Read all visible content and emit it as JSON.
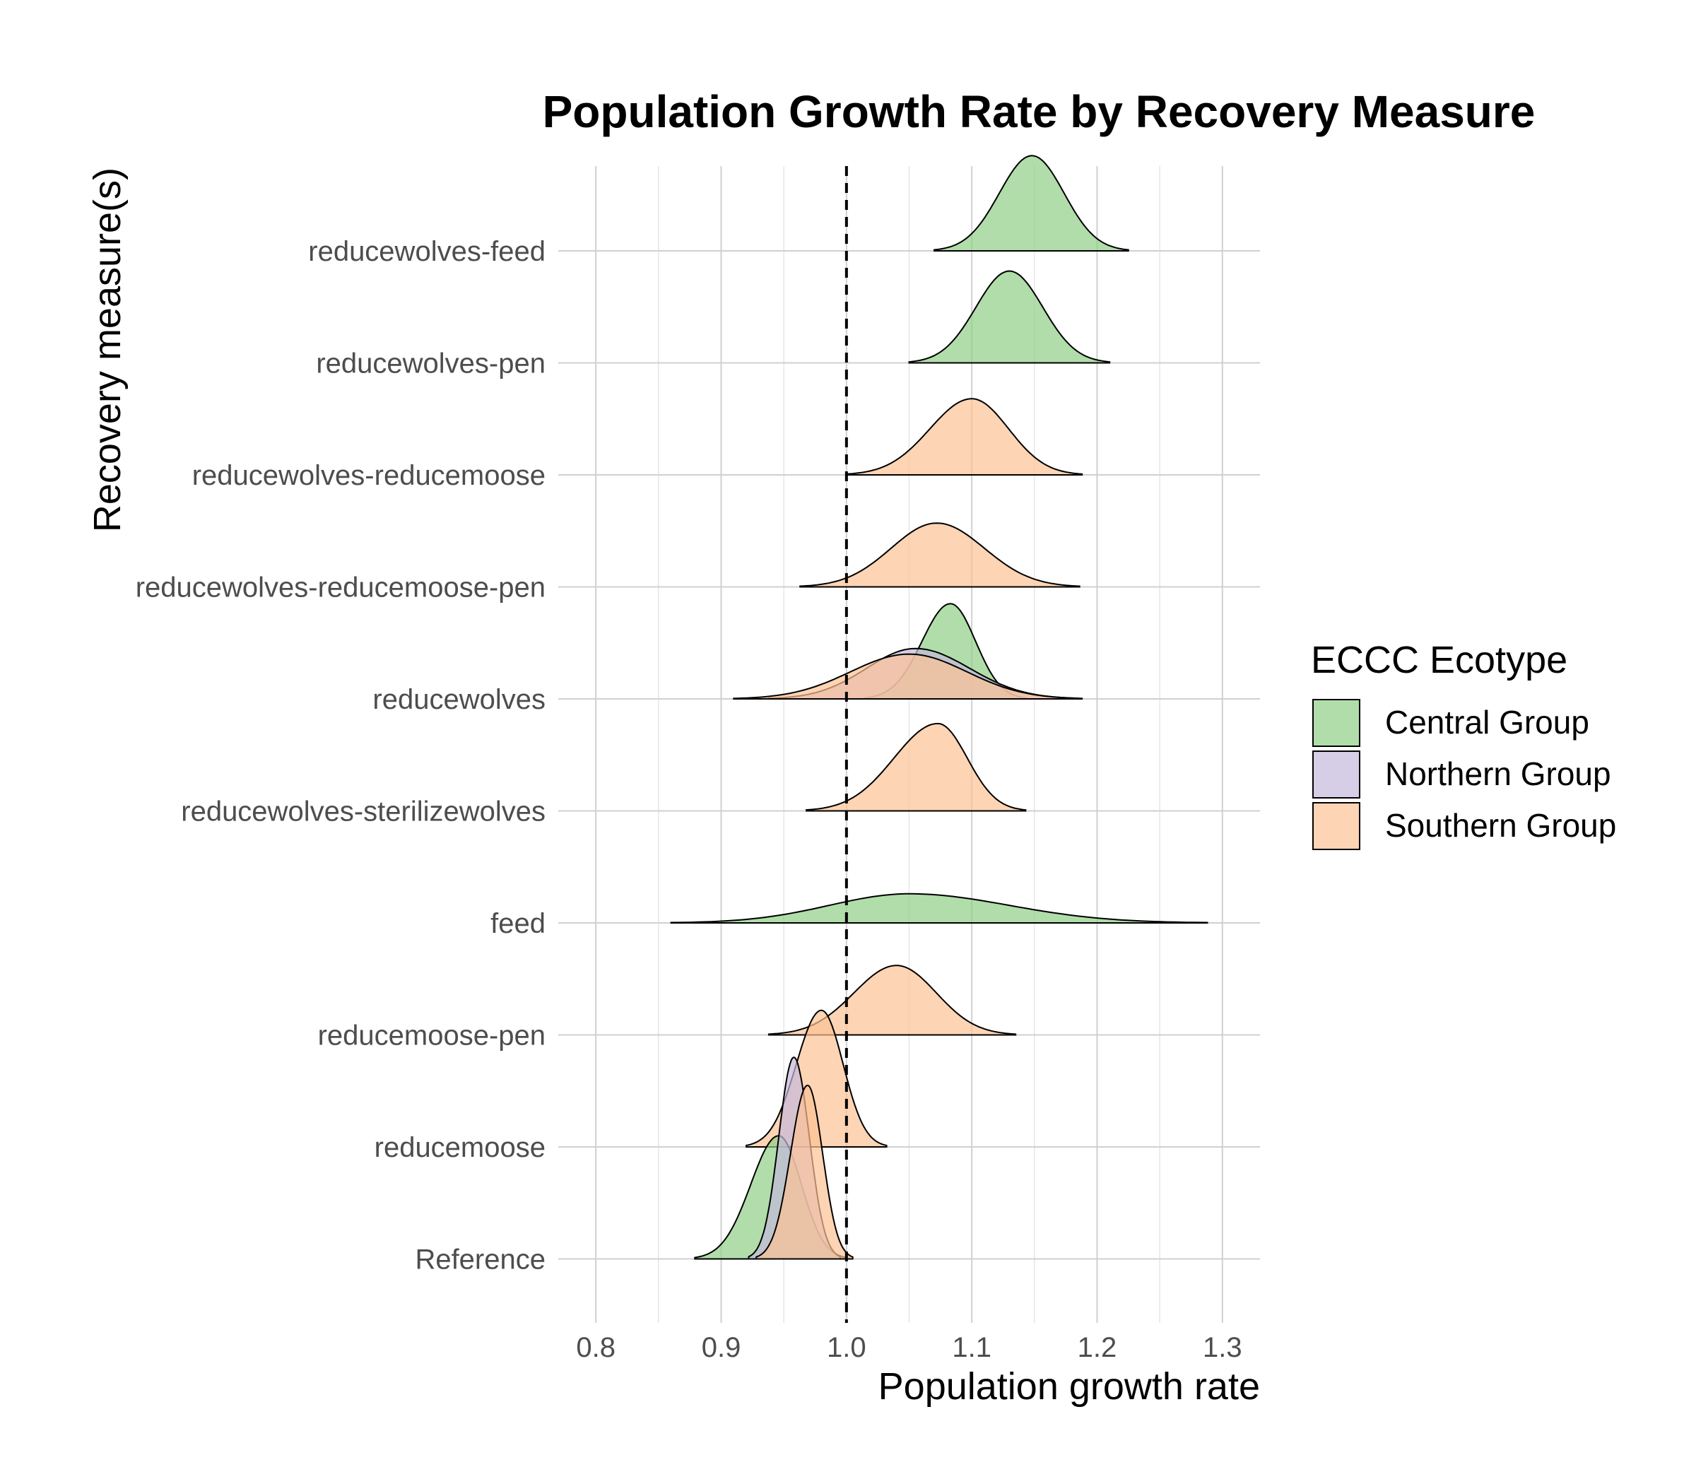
{
  "chart_data": {
    "type": "ridgeline",
    "title": "Population Growth Rate by Recovery Measure",
    "xlabel": "Population growth rate",
    "ylabel": "Recovery measure(s)",
    "xlim": [
      0.77,
      1.33
    ],
    "x_ticks": [
      0.8,
      0.9,
      1.0,
      1.1,
      1.2,
      1.3
    ],
    "x_tick_labels": [
      "0.8",
      "0.9",
      "1.0",
      "1.1",
      "1.2",
      "1.3"
    ],
    "reference_line": 1.0,
    "categories": [
      "reducewolves-feed",
      "reducewolves-pen",
      "reducewolves-reducemoose",
      "reducewolves-reducemoose-pen",
      "reducewolves",
      "reducewolves-sterilizewolves",
      "feed",
      "reducemoose-pen",
      "reducemoose",
      "Reference"
    ],
    "legend": {
      "title": "ECCC Ecotype",
      "position": "right",
      "entries": [
        {
          "name": "Central Group",
          "color": "#8ecf85"
        },
        {
          "name": "Northern Group",
          "color": "#c5b9dc"
        },
        {
          "name": "Southern Group",
          "color": "#fcc294"
        }
      ]
    },
    "colors": {
      "Central Group": "#8ecf85",
      "Northern Group": "#c5b9dc",
      "Southern Group": "#fcc294"
    },
    "distributions": [
      {
        "category": "reducewolves-feed",
        "group": "Central Group",
        "min": 1.07,
        "peak": 1.148,
        "max": 1.225,
        "height": 0.85
      },
      {
        "category": "reducewolves-pen",
        "group": "Central Group",
        "min": 1.05,
        "peak": 1.13,
        "max": 1.21,
        "height": 0.82
      },
      {
        "category": "reducewolves-reducemoose",
        "group": "Southern Group",
        "min": 1.0,
        "peak": 1.1,
        "max": 1.188,
        "height": 0.68
      },
      {
        "category": "reducewolves-reducemoose-pen",
        "group": "Southern Group",
        "min": 0.963,
        "peak": 1.072,
        "max": 1.186,
        "height": 0.57
      },
      {
        "category": "reducewolves",
        "group": "Central Group",
        "min": 1.015,
        "peak": 1.083,
        "max": 1.143,
        "height": 0.85
      },
      {
        "category": "reducewolves",
        "group": "Northern Group",
        "min": 0.938,
        "peak": 1.055,
        "max": 1.185,
        "height": 0.45
      },
      {
        "category": "reducewolves",
        "group": "Southern Group",
        "min": 0.91,
        "peak": 1.05,
        "max": 1.188,
        "height": 0.4
      },
      {
        "category": "reducewolves-sterilizewolves",
        "group": "Southern Group",
        "min": 0.968,
        "peak": 1.073,
        "max": 1.143,
        "height": 0.78
      },
      {
        "category": "feed",
        "group": "Central Group",
        "min": 0.86,
        "peak": 1.05,
        "max": 1.288,
        "height": 0.26
      },
      {
        "category": "reducemoose-pen",
        "group": "Southern Group",
        "min": 0.938,
        "peak": 1.04,
        "max": 1.135,
        "height": 0.62
      },
      {
        "category": "reducemoose",
        "group": "Southern Group",
        "min": 0.92,
        "peak": 0.98,
        "max": 1.032,
        "height": 1.22
      },
      {
        "category": "Reference",
        "group": "Central Group",
        "min": 0.879,
        "peak": 0.946,
        "max": 1.0,
        "height": 1.1
      },
      {
        "category": "Reference",
        "group": "Northern Group",
        "min": 0.922,
        "peak": 0.958,
        "max": 0.995,
        "height": 1.8
      },
      {
        "category": "Reference",
        "group": "Southern Group",
        "min": 0.928,
        "peak": 0.969,
        "max": 1.005,
        "height": 1.55
      }
    ]
  }
}
